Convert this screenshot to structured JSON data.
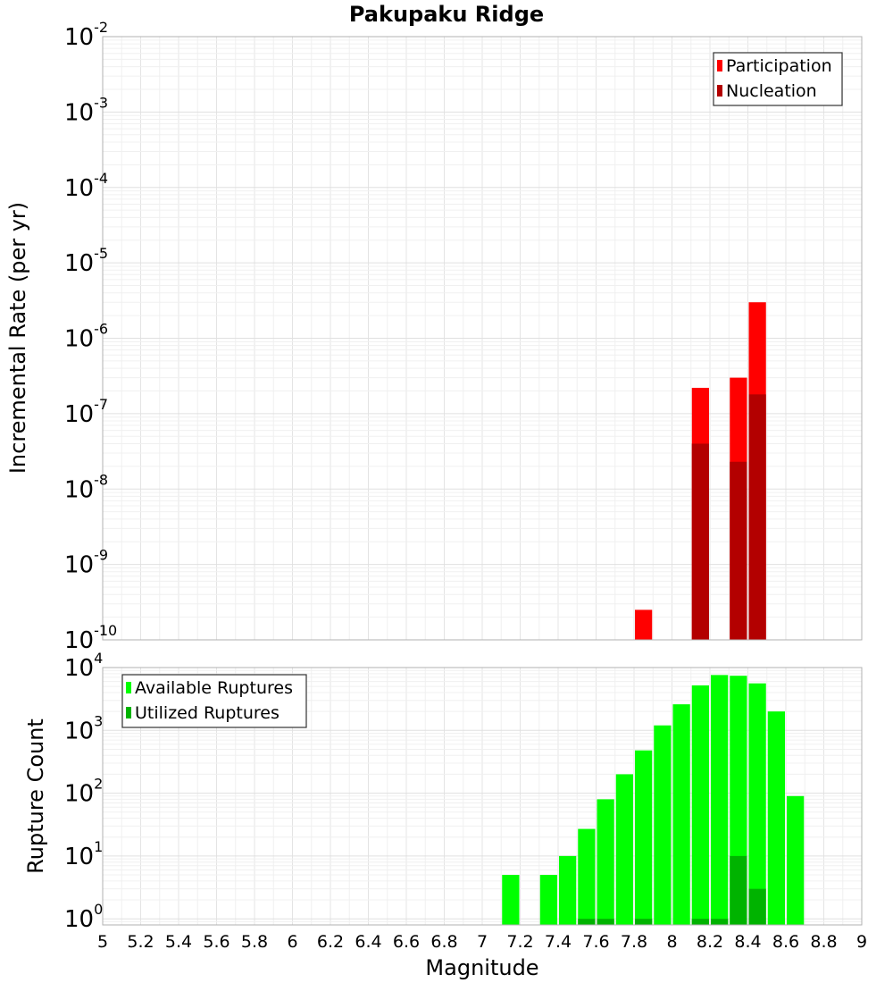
{
  "chart_data": [
    {
      "type": "bar",
      "title": "Pakupaku Ridge",
      "ylabel": "Incremental Rate (per yr)",
      "xlabel": "",
      "yscale": "log",
      "ylim": [
        1e-10,
        0.01
      ],
      "xlim": [
        5,
        9
      ],
      "bin_width": 0.1,
      "y_ticks": [
        {
          "base": "10",
          "exp": "-10"
        },
        {
          "base": "10",
          "exp": "-9"
        },
        {
          "base": "10",
          "exp": "-8"
        },
        {
          "base": "10",
          "exp": "-7"
        },
        {
          "base": "10",
          "exp": "-6"
        },
        {
          "base": "10",
          "exp": "-5"
        },
        {
          "base": "10",
          "exp": "-4"
        },
        {
          "base": "10",
          "exp": "-3"
        },
        {
          "base": "10",
          "exp": "-2"
        }
      ],
      "legend_position": "top-right",
      "series": [
        {
          "name": "Participation",
          "color": "#ff0000",
          "points": [
            [
              7.85,
              2.5e-10
            ],
            [
              8.15,
              2.2e-07
            ],
            [
              8.35,
              3e-07
            ],
            [
              8.45,
              3e-06
            ]
          ]
        },
        {
          "name": "Nucleation",
          "color": "#b30000",
          "points": [
            [
              8.15,
              4e-08
            ],
            [
              8.35,
              2.3e-08
            ],
            [
              8.45,
              1.8e-07
            ]
          ]
        }
      ]
    },
    {
      "type": "bar",
      "title": "",
      "ylabel": "Rupture Count",
      "xlabel": "Magnitude",
      "yscale": "log",
      "ylim": [
        0.8,
        10000
      ],
      "xlim": [
        5,
        9
      ],
      "bin_width": 0.1,
      "y_ticks": [
        {
          "base": "10",
          "exp": "0"
        },
        {
          "base": "10",
          "exp": "1"
        },
        {
          "base": "10",
          "exp": "2"
        },
        {
          "base": "10",
          "exp": "3"
        },
        {
          "base": "10",
          "exp": "4"
        }
      ],
      "x_tick_labels": [
        "5",
        "5.2",
        "5.4",
        "5.6",
        "5.8",
        "6",
        "6.2",
        "6.4",
        "6.6",
        "6.8",
        "7",
        "7.2",
        "7.4",
        "7.6",
        "7.8",
        "8",
        "8.2",
        "8.4",
        "8.6",
        "8.8",
        "9"
      ],
      "legend_position": "top-left",
      "series": [
        {
          "name": "Available Ruptures",
          "color": "#00ff00",
          "points": [
            [
              7.15,
              5
            ],
            [
              7.35,
              5
            ],
            [
              7.45,
              10
            ],
            [
              7.55,
              27
            ],
            [
              7.65,
              80
            ],
            [
              7.75,
              200
            ],
            [
              7.85,
              480
            ],
            [
              7.95,
              1200
            ],
            [
              8.05,
              2600
            ],
            [
              8.15,
              5200
            ],
            [
              8.25,
              7600
            ],
            [
              8.35,
              7400
            ],
            [
              8.45,
              5600
            ],
            [
              8.55,
              2000
            ],
            [
              8.65,
              90
            ]
          ]
        },
        {
          "name": "Utilized Ruptures",
          "color": "#00b300",
          "points": [
            [
              7.55,
              1
            ],
            [
              7.65,
              1
            ],
            [
              7.85,
              1
            ],
            [
              8.15,
              1
            ],
            [
              8.25,
              1
            ],
            [
              8.35,
              10
            ],
            [
              8.45,
              3
            ]
          ]
        }
      ]
    }
  ]
}
